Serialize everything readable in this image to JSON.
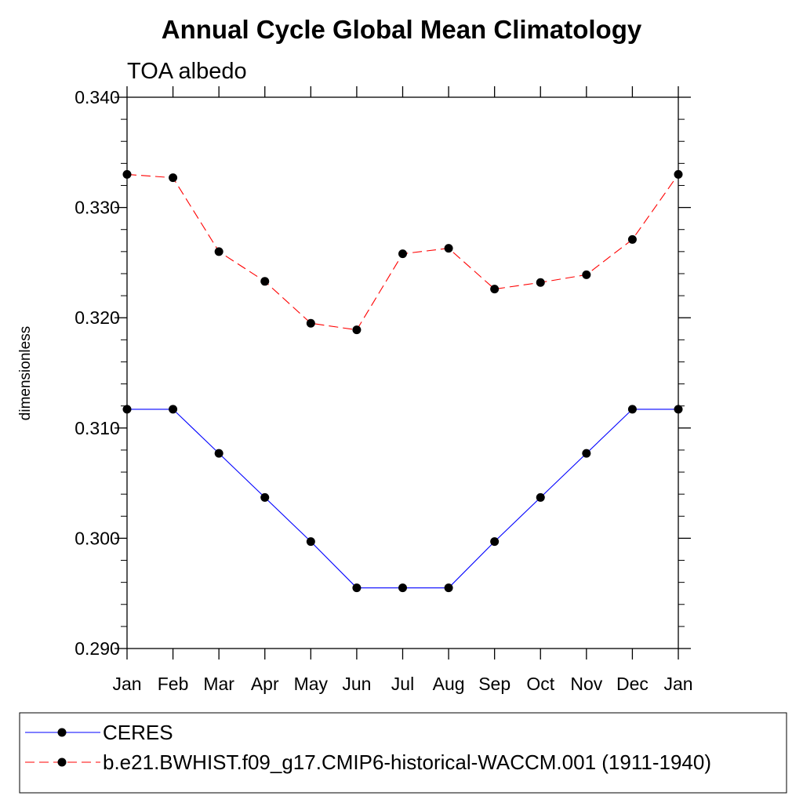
{
  "chart_data": {
    "type": "line",
    "title": "Annual Cycle Global Mean Climatology",
    "subtitle": "TOA albedo",
    "xlabel": "",
    "ylabel": "dimensionless",
    "categories": [
      "Jan",
      "Feb",
      "Mar",
      "Apr",
      "May",
      "Jun",
      "Jul",
      "Aug",
      "Sep",
      "Oct",
      "Nov",
      "Dec",
      "Jan"
    ],
    "ylim": [
      0.29,
      0.34
    ],
    "yticks": [
      "0.290",
      "0.300",
      "0.310",
      "0.320",
      "0.330",
      "0.340"
    ],
    "grid": false,
    "legend_position": "bottom",
    "series": [
      {
        "name": "CERES",
        "color": "#0000ff",
        "line_style": "solid",
        "marker": "filled-circle",
        "values": [
          0.3117,
          0.3117,
          0.3077,
          0.3037,
          0.2997,
          0.2955,
          0.2955,
          0.2955,
          0.2997,
          0.3037,
          0.3077,
          0.3117,
          0.3117
        ]
      },
      {
        "name": "b.e21.BWHIST.f09_g17.CMIP6-historical-WACCM.001 (1911-1940)",
        "color": "#ff0000",
        "line_style": "dashed",
        "marker": "filled-circle",
        "values": [
          0.333,
          0.3327,
          0.326,
          0.3233,
          0.3195,
          0.3189,
          0.3258,
          0.3263,
          0.3226,
          0.3232,
          0.3239,
          0.3271,
          0.333
        ]
      }
    ]
  }
}
